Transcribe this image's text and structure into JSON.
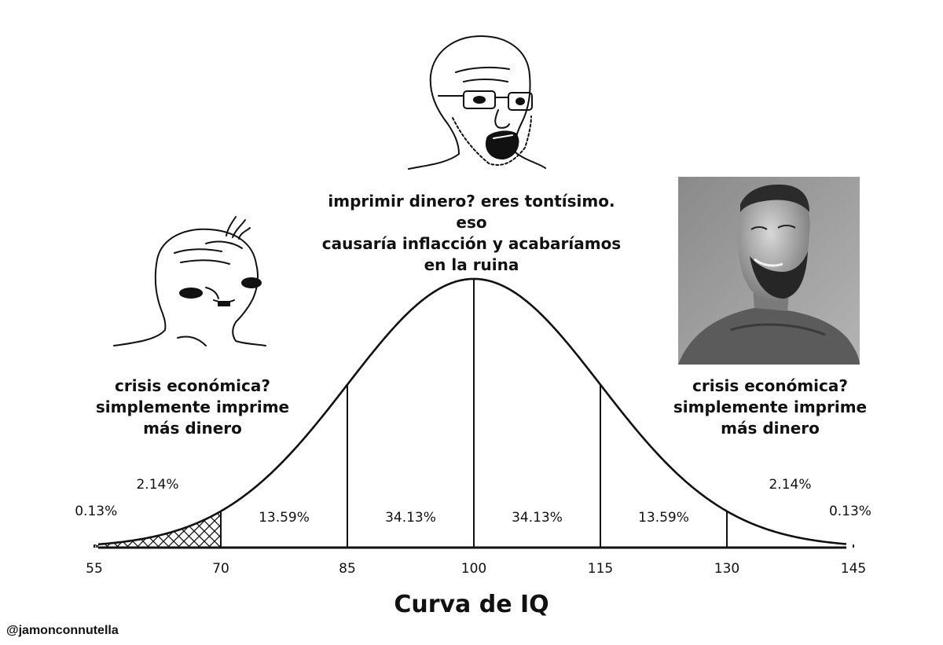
{
  "captions": {
    "left": "crisis económica?\nsimplemente imprime\nmás dinero",
    "middle": "imprimir dinero? eres tontísimo. eso\ncausaría inflacción y acabaríamos\nen la ruina",
    "right": "crisis económica?\nsimplemente imprime\nmás dinero"
  },
  "chart_title": "Curva de IQ",
  "watermark": "@jamonconnutella",
  "chart_data": {
    "type": "area",
    "title": "Curva de IQ",
    "distribution": "normal",
    "mean": 100,
    "std_dev": 15,
    "x_ticks": [
      55,
      70,
      85,
      100,
      115,
      130,
      145
    ],
    "regions": [
      {
        "from": null,
        "to": 55,
        "label": "0.13%"
      },
      {
        "from": 55,
        "to": 70,
        "label": "2.14%"
      },
      {
        "from": 70,
        "to": 85,
        "label": "13.59%"
      },
      {
        "from": 85,
        "to": 100,
        "label": "34.13%"
      },
      {
        "from": 100,
        "to": 115,
        "label": "34.13%"
      },
      {
        "from": 115,
        "to": 130,
        "label": "13.59%"
      },
      {
        "from": 130,
        "to": 145,
        "label": "2.14%"
      },
      {
        "from": 145,
        "to": null,
        "label": "0.13%"
      }
    ],
    "hatched_regions": [
      [
        null,
        70
      ]
    ],
    "grid": false
  },
  "figures": {
    "left": "wojak-brainlet-icon",
    "middle": "soyjak-glasses-icon",
    "right": "gigachad-icon"
  }
}
